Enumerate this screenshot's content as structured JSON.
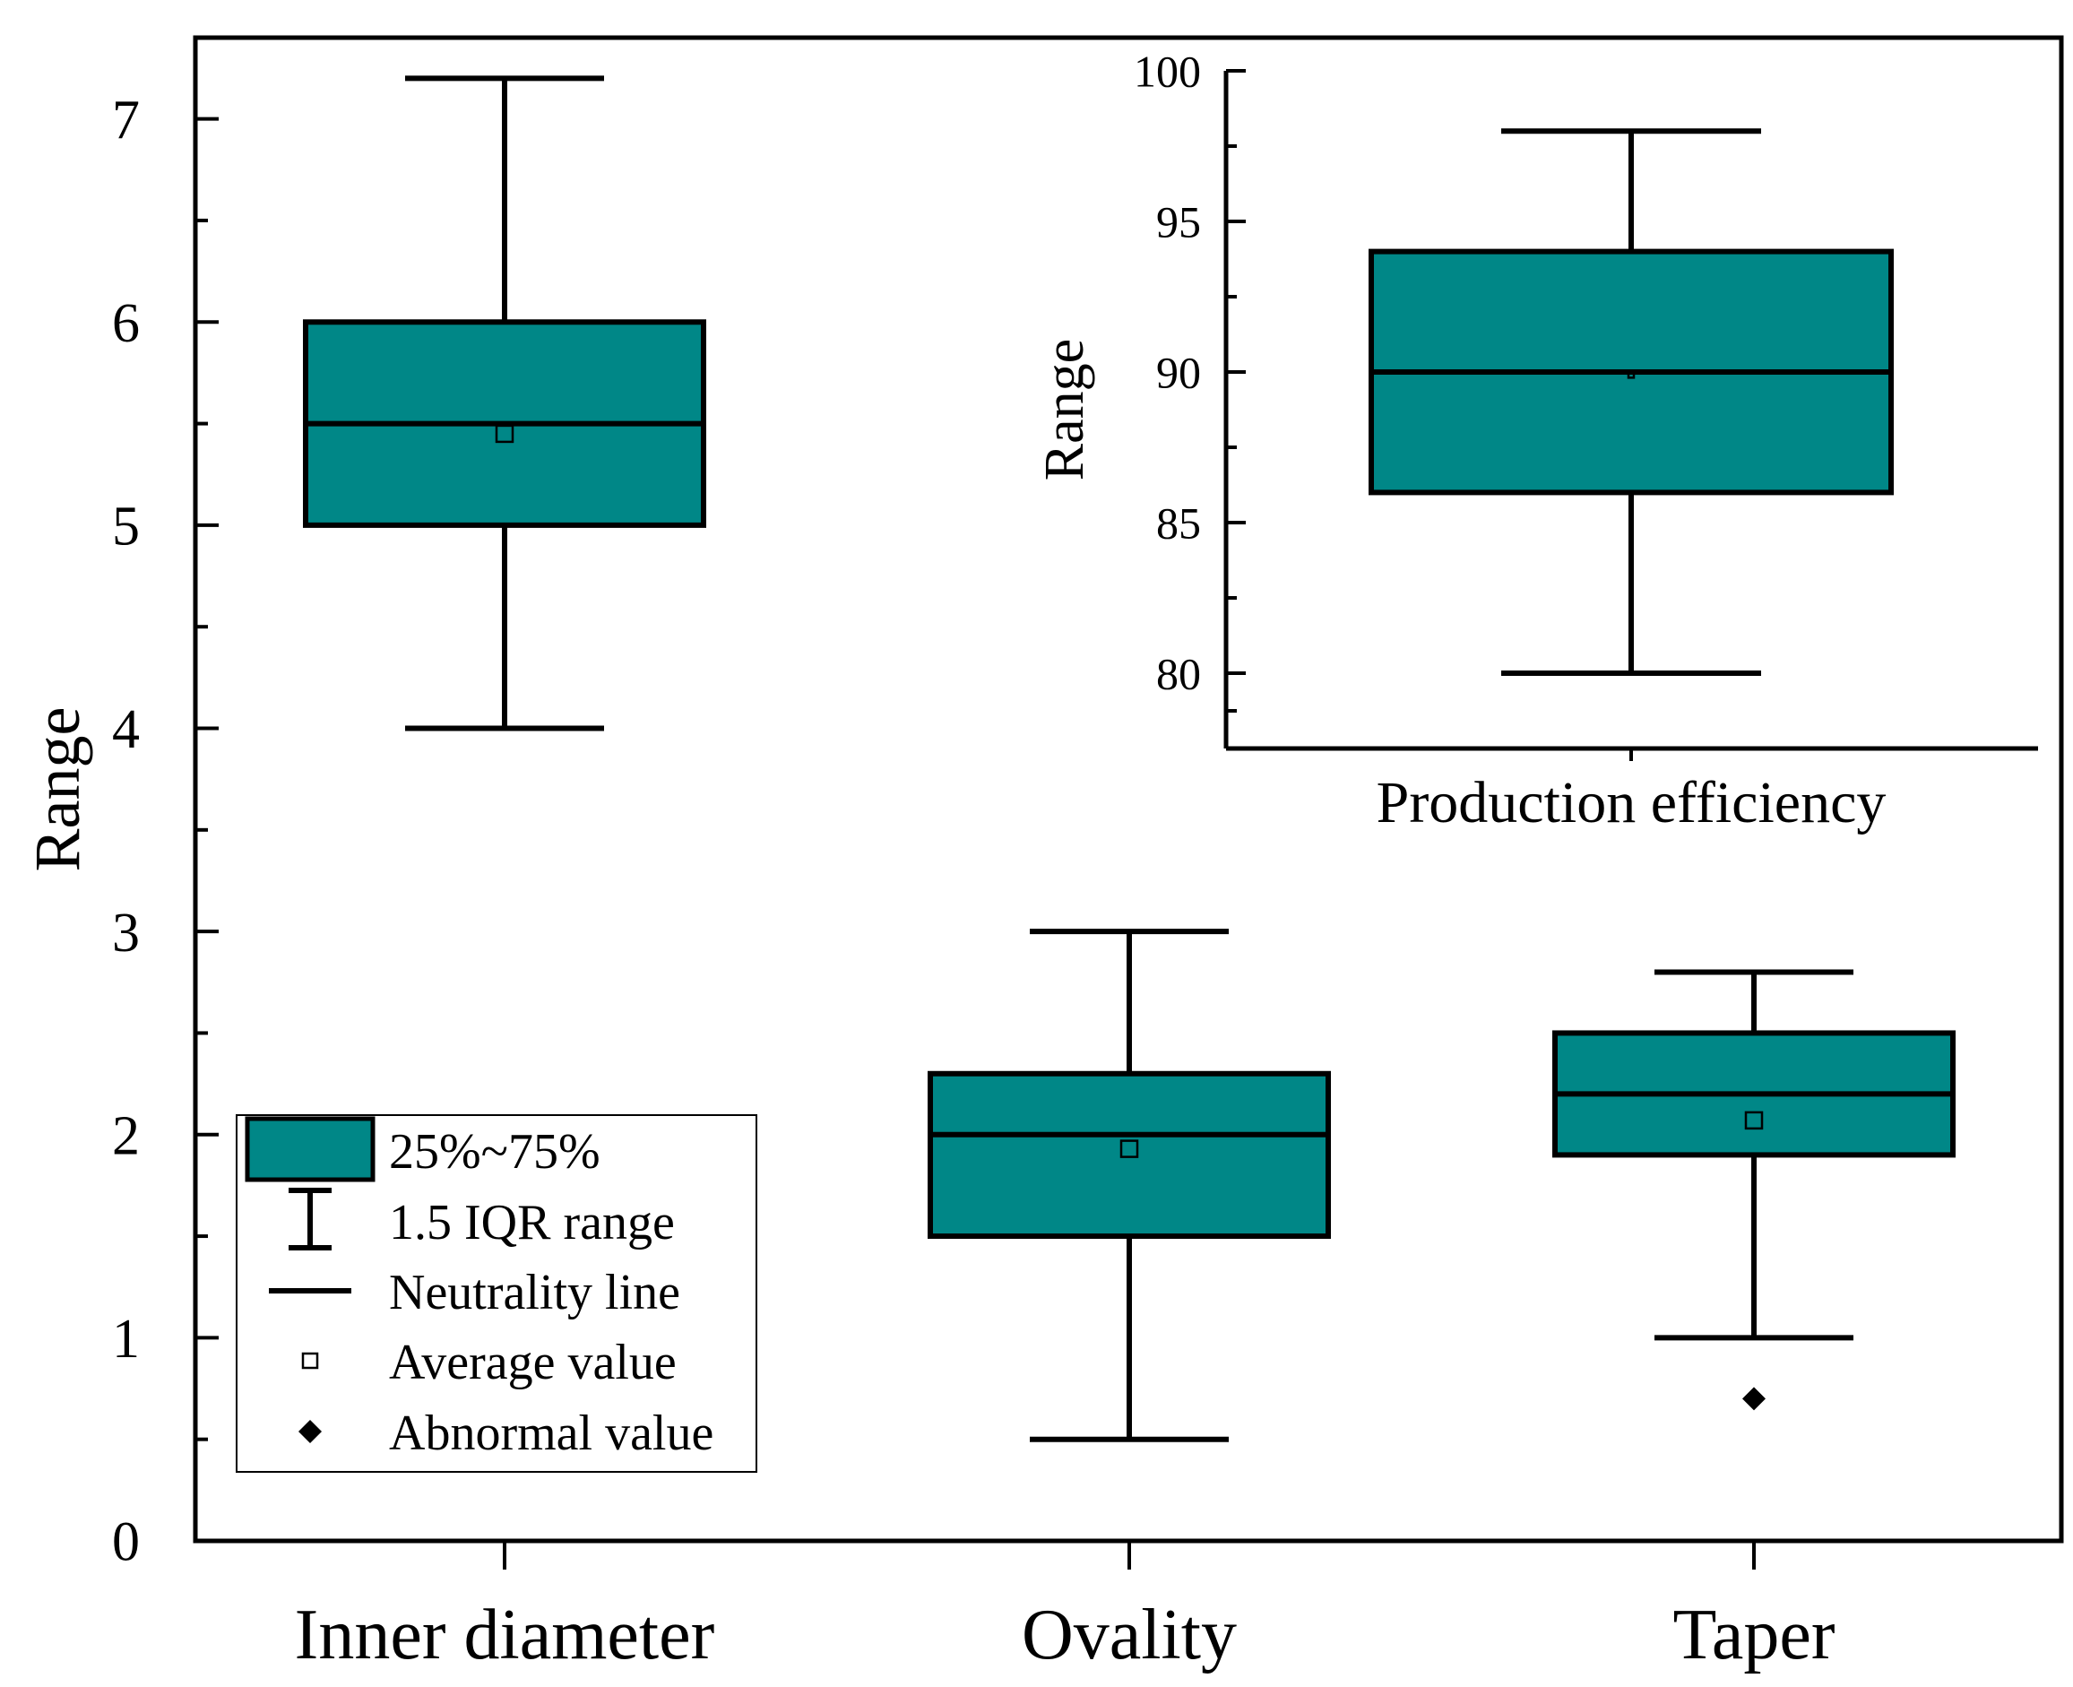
{
  "chart_data": [
    {
      "type": "box",
      "role": "main",
      "ylabel": "Range",
      "ylim": [
        0,
        7.4
      ],
      "yticks": [
        "0",
        "1",
        "2",
        "3",
        "4",
        "5",
        "6",
        "7"
      ],
      "categories": [
        "Inner diameter",
        "Ovality",
        "Taper"
      ],
      "color": "#008787",
      "boxes": [
        {
          "category": "Inner diameter",
          "whisker_low": 4.0,
          "q1": 5.0,
          "median": 5.5,
          "q3": 6.0,
          "whisker_high": 7.2,
          "mean": 5.45,
          "outliers": []
        },
        {
          "category": "Ovality",
          "whisker_low": 0.5,
          "q1": 1.5,
          "median": 2.0,
          "q3": 2.3,
          "whisker_high": 3.0,
          "mean": 1.93,
          "outliers": []
        },
        {
          "category": "Taper",
          "whisker_low": 1.0,
          "q1": 1.9,
          "median": 2.2,
          "q3": 2.5,
          "whisker_high": 2.8,
          "mean": 2.07,
          "outliers": [
            0.7
          ]
        }
      ]
    },
    {
      "type": "box",
      "role": "inset",
      "ylabel": "Range",
      "ylim": [
        77.5,
        100
      ],
      "yticks": [
        "80",
        "85",
        "90",
        "95",
        "100"
      ],
      "categories": [
        "Production efficiency"
      ],
      "color": "#008787",
      "boxes": [
        {
          "category": "Production efficiency",
          "whisker_low": 80,
          "q1": 86,
          "median": 90,
          "q3": 94,
          "whisker_high": 98,
          "mean": 89.9,
          "outliers": []
        }
      ]
    }
  ],
  "legend": {
    "position": "bottom-left",
    "items": [
      {
        "key": "box",
        "label": "25%~75%"
      },
      {
        "key": "whisker",
        "label": "1.5 IQR range"
      },
      {
        "key": "median",
        "label": "Neutrality line"
      },
      {
        "key": "mean",
        "label": "Average value"
      },
      {
        "key": "outlier",
        "label": "Abnormal value"
      }
    ]
  }
}
